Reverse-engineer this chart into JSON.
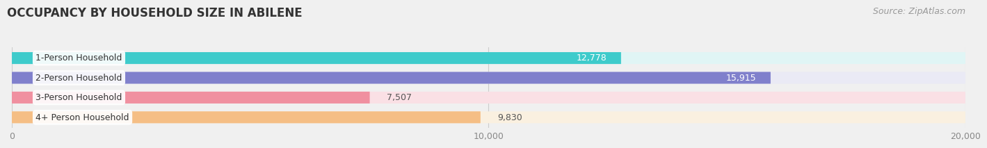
{
  "title": "OCCUPANCY BY HOUSEHOLD SIZE IN ABILENE",
  "source": "Source: ZipAtlas.com",
  "categories": [
    "1-Person Household",
    "2-Person Household",
    "3-Person Household",
    "4+ Person Household"
  ],
  "values": [
    12778,
    15915,
    7507,
    9830
  ],
  "bar_colors": [
    "#3ECBCB",
    "#8080CC",
    "#F090A0",
    "#F5BE85"
  ],
  "bar_bg_colors": [
    "#E0F5F5",
    "#EAEAF5",
    "#FAE0E5",
    "#FAF0E0"
  ],
  "label_in_bar": [
    true,
    true,
    false,
    false
  ],
  "label_colors_in": [
    "#ffffff",
    "#ffffff",
    "#555555",
    "#555555"
  ],
  "xlim": [
    0,
    20000
  ],
  "xticks": [
    0,
    10000,
    20000
  ],
  "xtick_labels": [
    "0",
    "10,000",
    "20,000"
  ],
  "title_fontsize": 12,
  "source_fontsize": 9,
  "bar_label_fontsize": 9,
  "category_fontsize": 9,
  "bar_height": 0.6,
  "background_color": "#f0f0f0"
}
